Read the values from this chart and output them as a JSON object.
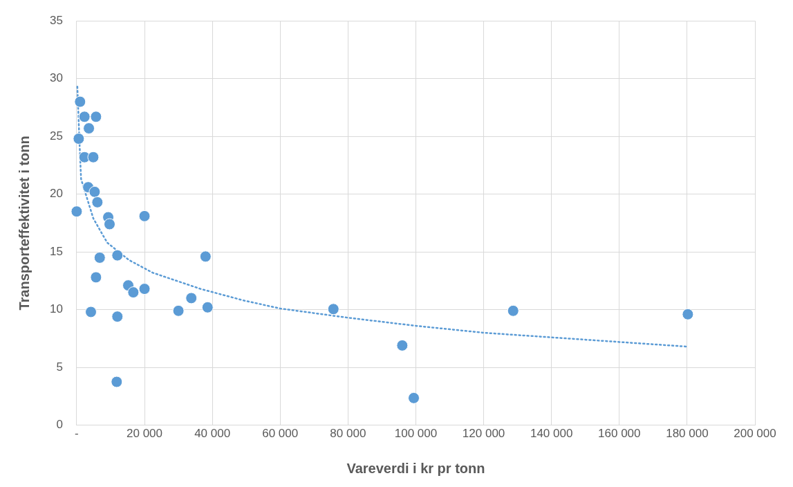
{
  "chart_data": {
    "type": "scatter",
    "xlabel": "Vareverdi i kr pr tonn",
    "ylabel": "Transporteffektivitet i tonn",
    "xlim": [
      0,
      200000
    ],
    "xticks": [
      {
        "value": 0,
        "label": "-"
      },
      {
        "value": 20000,
        "label": "20 000"
      },
      {
        "value": 40000,
        "label": "40 000"
      },
      {
        "value": 60000,
        "label": "60 000"
      },
      {
        "value": 80000,
        "label": "80 000"
      },
      {
        "value": 100000,
        "label": "100 000"
      },
      {
        "value": 120000,
        "label": "120 000"
      },
      {
        "value": 140000,
        "label": "140 000"
      },
      {
        "value": 160000,
        "label": "160 000"
      },
      {
        "value": 180000,
        "label": "180 000"
      },
      {
        "value": 200000,
        "label": "200 000"
      }
    ],
    "ylim": [
      0,
      35
    ],
    "yticks": [
      0,
      5,
      10,
      15,
      20,
      25,
      30,
      35
    ],
    "grid": true,
    "legend": false,
    "marker": "circle",
    "series": [
      {
        "color": "#5b9bd5",
        "x": [
          0,
          1000,
          600,
          2300,
          5700,
          3600,
          2300,
          4900,
          3400,
          5300,
          6100,
          9300,
          9700,
          20000,
          6800,
          12000,
          5700,
          15200,
          16700,
          20000,
          4200,
          12000,
          11800,
          30000,
          33800,
          38600,
          38000,
          75700,
          96000,
          99400,
          128700,
          180200
        ],
        "values": [
          18.5,
          28,
          24.8,
          26.7,
          26.7,
          25.7,
          23.2,
          23.2,
          20.6,
          20.2,
          19.3,
          18,
          17.4,
          18.1,
          14.5,
          14.7,
          12.8,
          12.1,
          11.5,
          11.8,
          9.8,
          9.4,
          3.75,
          9.9,
          11,
          10.2,
          14.6,
          10.05,
          6.9,
          2.35,
          9.9,
          9.6
        ]
      },
      {
        "type": "line",
        "color": "#5b9bd5",
        "line_style": "dotted",
        "marker": "none",
        "x": [
          200,
          800,
          1300,
          4900,
          9000,
          15400,
          22400,
          36500,
          49200,
          60000,
          80000,
          100000,
          120000,
          140000,
          160000,
          180000
        ],
        "values": [
          29.3,
          24.7,
          21.3,
          17.9,
          15.8,
          14.3,
          13.2,
          11.8,
          10.8,
          10.1,
          9.3,
          8.6,
          8,
          7.6,
          7.2,
          6.8
        ]
      }
    ]
  }
}
